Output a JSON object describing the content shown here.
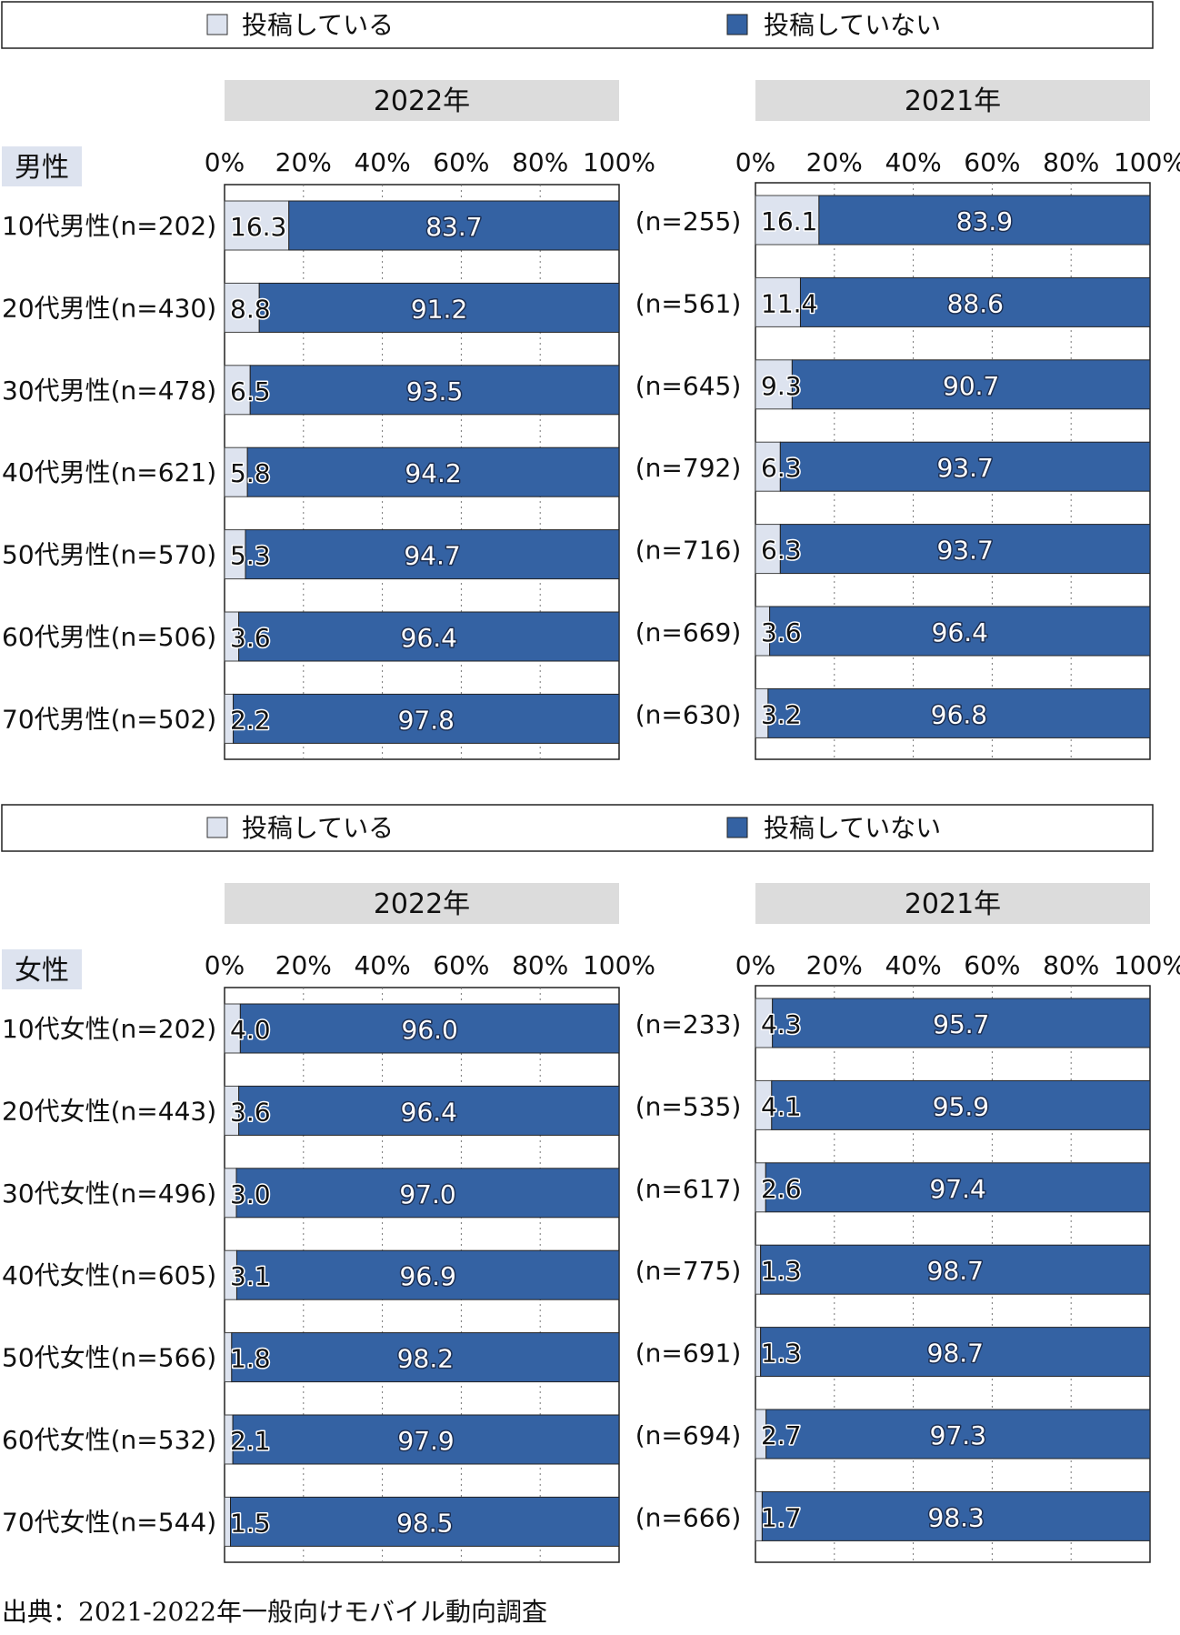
{
  "legend": {
    "posting": "投稿している",
    "not_posting": "投稿していない"
  },
  "colors": {
    "posting": "#dde3ef",
    "not_posting": "#3462a3",
    "year_header": "#dcdcdc",
    "gender_label": "#dde3ef"
  },
  "source": "出典：2021-2022年一般向けモバイル動向調査",
  "chart_data": [
    {
      "type": "stacked-bar-horizontal",
      "gender": "男性",
      "axis_ticks": [
        "0%",
        "20%",
        "40%",
        "60%",
        "80%",
        "100%"
      ],
      "xlim": [
        0,
        100
      ],
      "years": [
        "2022年",
        "2021年"
      ],
      "categories": [
        "10代男性",
        "20代男性",
        "30代男性",
        "40代男性",
        "50代男性",
        "60代男性",
        "70代男性"
      ],
      "row_labels": [
        "10代男性(n=202)",
        "20代男性(n=430)",
        "30代男性(n=478)",
        "40代男性(n=621)",
        "50代男性(n=570)",
        "60代男性(n=506)",
        "70代男性(n=502)"
      ],
      "n_2021": [
        "(n=255)",
        "(n=561)",
        "(n=645)",
        "(n=792)",
        "(n=716)",
        "(n=669)",
        "(n=630)"
      ],
      "values_2022": {
        "posting": [
          16.3,
          8.8,
          6.5,
          5.8,
          5.3,
          3.6,
          2.2
        ],
        "not_posting": [
          83.7,
          91.2,
          93.5,
          94.2,
          94.7,
          96.4,
          97.8
        ]
      },
      "values_2021": {
        "posting": [
          16.1,
          11.4,
          9.3,
          6.3,
          6.3,
          3.6,
          3.2
        ],
        "not_posting": [
          83.9,
          88.6,
          90.7,
          93.7,
          93.7,
          96.4,
          96.8
        ]
      }
    },
    {
      "type": "stacked-bar-horizontal",
      "gender": "女性",
      "axis_ticks": [
        "0%",
        "20%",
        "40%",
        "60%",
        "80%",
        "100%"
      ],
      "xlim": [
        0,
        100
      ],
      "years": [
        "2022年",
        "2021年"
      ],
      "categories": [
        "10代女性",
        "20代女性",
        "30代女性",
        "40代女性",
        "50代女性",
        "60代女性",
        "70代女性"
      ],
      "row_labels": [
        "10代女性(n=202)",
        "20代女性(n=443)",
        "30代女性(n=496)",
        "40代女性(n=605)",
        "50代女性(n=566)",
        "60代女性(n=532)",
        "70代女性(n=544)"
      ],
      "n_2021": [
        "(n=233)",
        "(n=535)",
        "(n=617)",
        "(n=775)",
        "(n=691)",
        "(n=694)",
        "(n=666)"
      ],
      "values_2022": {
        "posting": [
          4.0,
          3.6,
          3.0,
          3.1,
          1.8,
          2.1,
          1.5
        ],
        "not_posting": [
          96.0,
          96.4,
          97.0,
          96.9,
          98.2,
          97.9,
          98.5
        ]
      },
      "values_2021": {
        "posting": [
          4.3,
          4.1,
          2.6,
          1.3,
          1.3,
          2.7,
          1.7
        ],
        "not_posting": [
          95.7,
          95.9,
          97.4,
          98.7,
          98.7,
          97.3,
          98.3
        ]
      }
    }
  ]
}
